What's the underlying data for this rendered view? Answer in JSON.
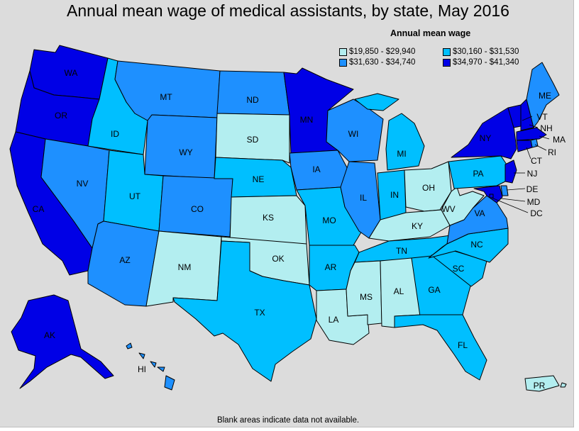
{
  "title": "Annual mean wage of medical assistants, by state, May 2016",
  "legend": {
    "title": "Annual mean wage",
    "bins": [
      {
        "label": "$19,850 - $29,940",
        "color": "#b3eef0"
      },
      {
        "label": "$30,160 - $31,530",
        "color": "#00bfff"
      },
      {
        "label": "$31,630 - $34,740",
        "color": "#1e90ff"
      },
      {
        "label": "$34,970 - $41,340",
        "color": "#0000e6"
      }
    ]
  },
  "footnote": "Blank areas indicate data not available.",
  "states": {
    "WA": 3,
    "OR": 3,
    "CA": 3,
    "AK": 3,
    "HI": 2,
    "NV": 2,
    "ID": 1,
    "MT": 2,
    "WY": 2,
    "UT": 1,
    "AZ": 2,
    "CO": 2,
    "NM": 0,
    "ND": 2,
    "SD": 0,
    "NE": 1,
    "KS": 0,
    "OK": 0,
    "TX": 1,
    "MN": 3,
    "IA": 2,
    "MO": 1,
    "AR": 1,
    "LA": 0,
    "WI": 2,
    "IL": 2,
    "MI": 1,
    "IN": 1,
    "OH": 0,
    "KY": 0,
    "TN": 1,
    "MS": 0,
    "AL": 0,
    "GA": 1,
    "FL": 1,
    "SC": 1,
    "NC": 1,
    "VA": 2,
    "WV": 0,
    "PA": 1,
    "NY": 3,
    "VT": 3,
    "NH": 3,
    "ME": 2,
    "MA": 3,
    "RI": 2,
    "CT": 3,
    "NJ": 3,
    "DE": 2,
    "MD": 3,
    "DC": 3,
    "PR": 0
  },
  "labels": {
    "WA": "WA",
    "OR": "OR",
    "CA": "CA",
    "AK": "AK",
    "HI": "HI",
    "NV": "NV",
    "ID": "ID",
    "MT": "MT",
    "WY": "WY",
    "UT": "UT",
    "AZ": "AZ",
    "CO": "CO",
    "NM": "NM",
    "ND": "ND",
    "SD": "SD",
    "NE": "NE",
    "KS": "KS",
    "OK": "OK",
    "TX": "TX",
    "MN": "MN",
    "IA": "IA",
    "MO": "MO",
    "AR": "AR",
    "LA": "LA",
    "WI": "WI",
    "IL": "IL",
    "MI": "MI",
    "IN": "IN",
    "OH": "OH",
    "KY": "KY",
    "TN": "TN",
    "MS": "MS",
    "AL": "AL",
    "GA": "GA",
    "FL": "FL",
    "SC": "SC",
    "NC": "NC",
    "VA": "VA",
    "WV": "WV",
    "PA": "PA",
    "NY": "NY",
    "VT": "VT",
    "NH": "NH",
    "ME": "ME",
    "MA": "MA",
    "RI": "RI",
    "CT": "CT",
    "NJ": "NJ",
    "DE": "DE",
    "MD": "MD",
    "DC": "DC",
    "PR": "PR"
  }
}
